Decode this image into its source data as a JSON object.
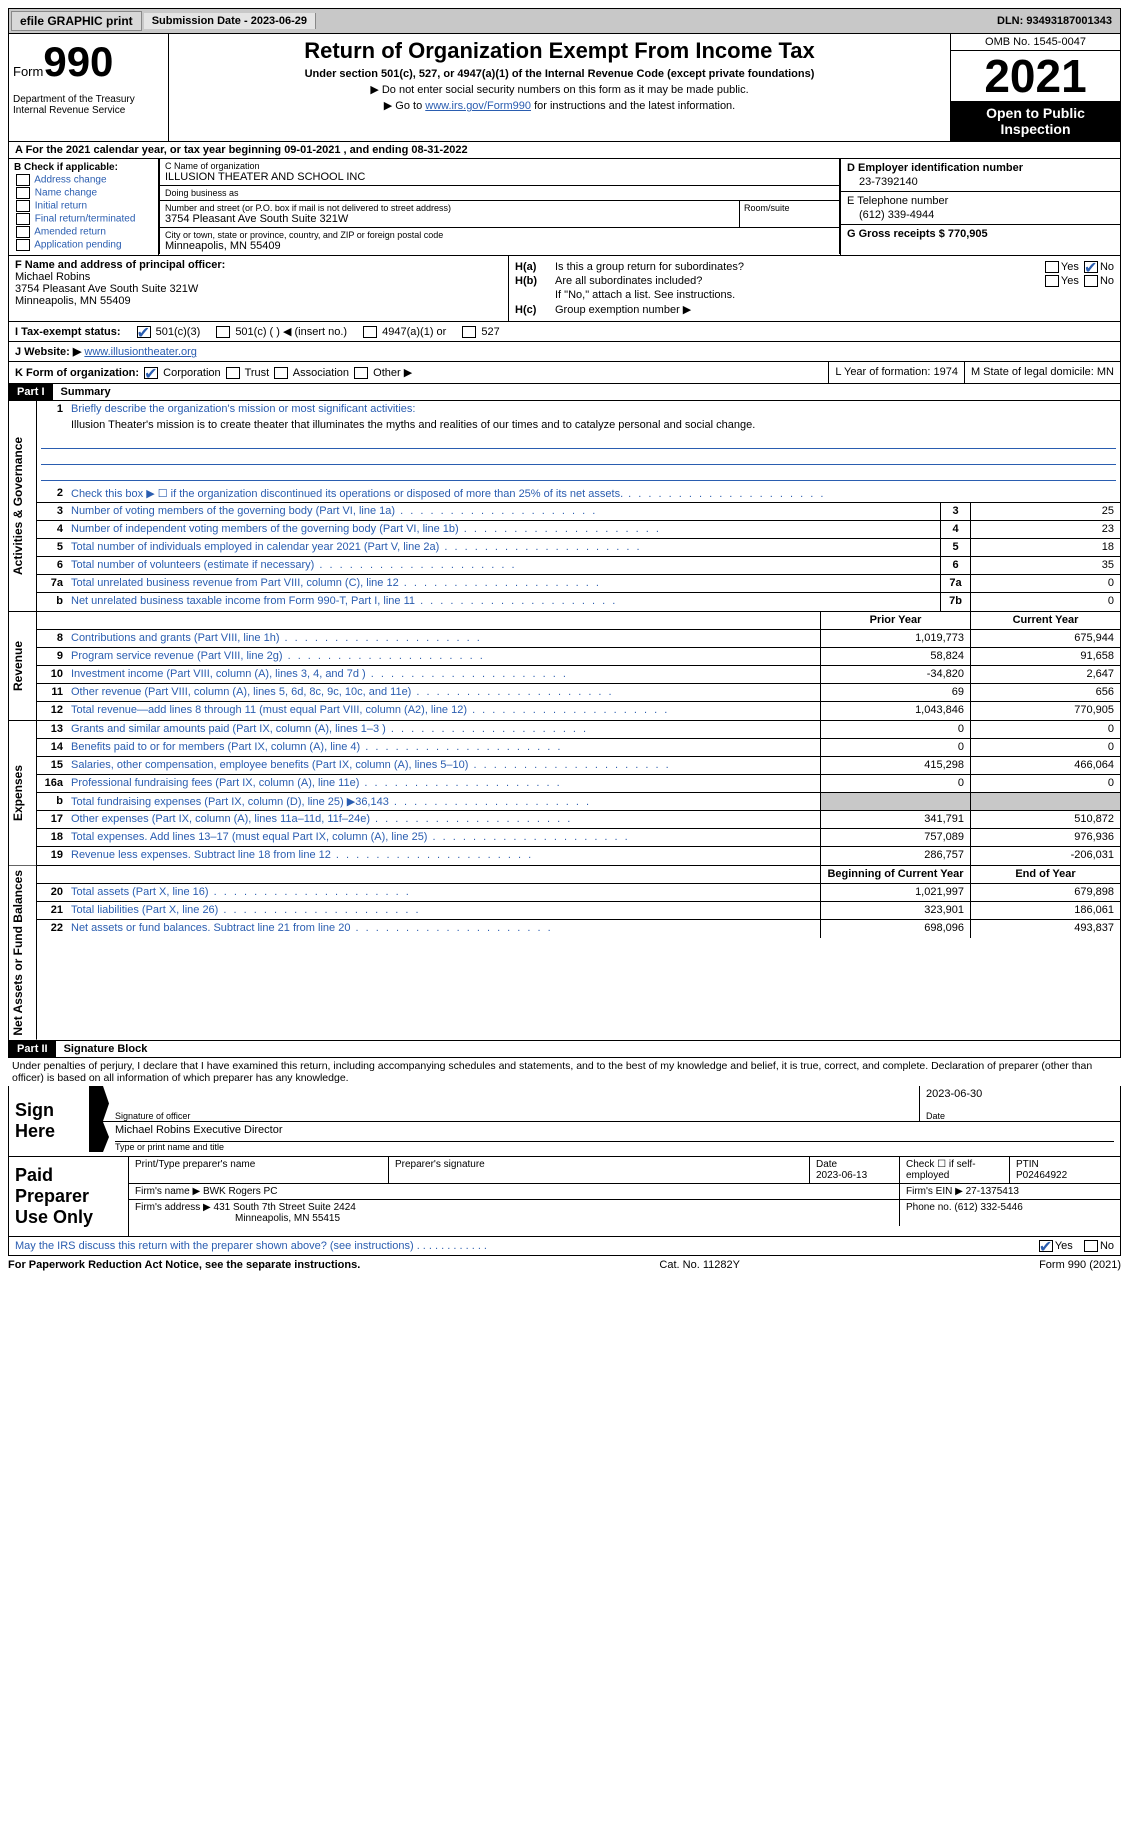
{
  "topbar": {
    "efile": "efile GRAPHIC print",
    "submission": "Submission Date - 2023-06-29",
    "dln": "DLN: 93493187001343"
  },
  "header": {
    "form_prefix": "Form",
    "form_number": "990",
    "dept": "Department of the Treasury\nInternal Revenue Service",
    "title": "Return of Organization Exempt From Income Tax",
    "subtitle": "Under section 501(c), 527, or 4947(a)(1) of the Internal Revenue Code (except private foundations)",
    "instr1": "▶ Do not enter social security numbers on this form as it may be made public.",
    "instr2_pre": "▶ Go to ",
    "instr2_link": "www.irs.gov/Form990",
    "instr2_post": " for instructions and the latest information.",
    "omb": "OMB No. 1545-0047",
    "year": "2021",
    "inspect": "Open to Public Inspection"
  },
  "row_a": "A For the 2021 calendar year, or tax year beginning 09-01-2021   , and ending 08-31-2022",
  "section_b": {
    "label": "B Check if applicable:",
    "opts": [
      "Address change",
      "Name change",
      "Initial return",
      "Final return/terminated",
      "Amended return",
      "Application pending"
    ]
  },
  "section_c": {
    "name_label": "C Name of organization",
    "name": "ILLUSION THEATER AND SCHOOL INC",
    "dba_label": "Doing business as",
    "dba": "",
    "street_label": "Number and street (or P.O. box if mail is not delivered to street address)",
    "room_label": "Room/suite",
    "street": "3754 Pleasant Ave South Suite 321W",
    "city_label": "City or town, state or province, country, and ZIP or foreign postal code",
    "city": "Minneapolis, MN  55409"
  },
  "section_d": {
    "label": "D Employer identification number",
    "value": "23-7392140"
  },
  "section_e": {
    "label": "E Telephone number",
    "value": "(612) 339-4944"
  },
  "section_g": {
    "label": "G Gross receipts $ 770,905"
  },
  "section_f": {
    "label": "F  Name and address of principal officer:",
    "name": "Michael Robins",
    "street": "3754 Pleasant Ave South Suite 321W",
    "city": "Minneapolis, MN  55409"
  },
  "section_h": {
    "a_label": "H(a)",
    "a_text": "Is this a group return for subordinates?",
    "a_yes": "Yes",
    "a_no": "No",
    "b_label": "H(b)",
    "b_text": "Are all subordinates included?",
    "b_yes": "Yes",
    "b_no": "No",
    "b_note": "If \"No,\" attach a list. See instructions.",
    "c_label": "H(c)",
    "c_text": "Group exemption number ▶"
  },
  "section_i": {
    "label": "I   Tax-exempt status:",
    "o1": "501(c)(3)",
    "o2": "501(c) (  ) ◀ (insert no.)",
    "o3": "4947(a)(1) or",
    "o4": "527"
  },
  "section_j": {
    "label": "J   Website: ▶",
    "value": "www.illusiontheater.org"
  },
  "section_k": {
    "label": "K Form of organization:",
    "o1": "Corporation",
    "o2": "Trust",
    "o3": "Association",
    "o4": "Other ▶",
    "l_label": "L Year of formation: 1974",
    "m_label": "M State of legal domicile: MN"
  },
  "part1": {
    "hdr": "Part I",
    "title": "Summary"
  },
  "summary": {
    "sections": [
      {
        "label": "Activities & Governance",
        "rows": [
          {
            "n": "1",
            "t": "Briefly describe the organization's mission or most significant activities:",
            "mission": true
          },
          {
            "mtext": "Illusion Theater's mission is to create theater that illuminates the myths and realities of our times and to catalyze personal and social change."
          },
          {
            "n": "2",
            "t": "Check this box ▶ ☐ if the organization discontinued its operations or disposed of more than 25% of its net assets."
          },
          {
            "n": "3",
            "t": "Number of voting members of the governing body (Part VI, line 1a)",
            "box": "3",
            "v2": "25"
          },
          {
            "n": "4",
            "t": "Number of independent voting members of the governing body (Part VI, line 1b)",
            "box": "4",
            "v2": "23"
          },
          {
            "n": "5",
            "t": "Total number of individuals employed in calendar year 2021 (Part V, line 2a)",
            "box": "5",
            "v2": "18"
          },
          {
            "n": "6",
            "t": "Total number of volunteers (estimate if necessary)",
            "box": "6",
            "v2": "35"
          },
          {
            "n": "7a",
            "t": "Total unrelated business revenue from Part VIII, column (C), line 12",
            "box": "7a",
            "v2": "0"
          },
          {
            "n": "b",
            "t": "Net unrelated business taxable income from Form 990-T, Part I, line 11",
            "box": "7b",
            "v2": "0"
          }
        ]
      },
      {
        "label": "Revenue",
        "hdr1": "Prior Year",
        "hdr2": "Current Year",
        "rows": [
          {
            "n": "8",
            "t": "Contributions and grants (Part VIII, line 1h)",
            "v1": "1,019,773",
            "v2": "675,944"
          },
          {
            "n": "9",
            "t": "Program service revenue (Part VIII, line 2g)",
            "v1": "58,824",
            "v2": "91,658"
          },
          {
            "n": "10",
            "t": "Investment income (Part VIII, column (A), lines 3, 4, and 7d )",
            "v1": "-34,820",
            "v2": "2,647"
          },
          {
            "n": "11",
            "t": "Other revenue (Part VIII, column (A), lines 5, 6d, 8c, 9c, 10c, and 11e)",
            "v1": "69",
            "v2": "656"
          },
          {
            "n": "12",
            "t": "Total revenue—add lines 8 through 11 (must equal Part VIII, column (A2), line 12)",
            "v1": "1,043,846",
            "v2": "770,905"
          }
        ]
      },
      {
        "label": "Expenses",
        "rows": [
          {
            "n": "13",
            "t": "Grants and similar amounts paid (Part IX, column (A), lines 1–3 )",
            "v1": "0",
            "v2": "0"
          },
          {
            "n": "14",
            "t": "Benefits paid to or for members (Part IX, column (A), line 4)",
            "v1": "0",
            "v2": "0"
          },
          {
            "n": "15",
            "t": "Salaries, other compensation, employee benefits (Part IX, column (A), lines 5–10)",
            "v1": "415,298",
            "v2": "466,064"
          },
          {
            "n": "16a",
            "t": "Professional fundraising fees (Part IX, column (A), line 11e)",
            "v1": "0",
            "v2": "0"
          },
          {
            "n": "b",
            "t": "Total fundraising expenses (Part IX, column (D), line 25) ▶36,143",
            "v1grey": true,
            "v2grey": true
          },
          {
            "n": "17",
            "t": "Other expenses (Part IX, column (A), lines 11a–11d, 11f–24e)",
            "v1": "341,791",
            "v2": "510,872"
          },
          {
            "n": "18",
            "t": "Total expenses. Add lines 13–17 (must equal Part IX, column (A), line 25)",
            "v1": "757,089",
            "v2": "976,936"
          },
          {
            "n": "19",
            "t": "Revenue less expenses. Subtract line 18 from line 12",
            "v1": "286,757",
            "v2": "-206,031"
          }
        ]
      },
      {
        "label": "Net Assets or Fund Balances",
        "hdr1": "Beginning of Current Year",
        "hdr2": "End of Year",
        "rows": [
          {
            "n": "20",
            "t": "Total assets (Part X, line 16)",
            "v1": "1,021,997",
            "v2": "679,898"
          },
          {
            "n": "21",
            "t": "Total liabilities (Part X, line 26)",
            "v1": "323,901",
            "v2": "186,061"
          },
          {
            "n": "22",
            "t": "Net assets or fund balances. Subtract line 21 from line 20",
            "v1": "698,096",
            "v2": "493,837"
          }
        ]
      }
    ]
  },
  "part2": {
    "hdr": "Part II",
    "title": "Signature Block"
  },
  "sig": {
    "decl": "Under penalties of perjury, I declare that I have examined this return, including accompanying schedules and statements, and to the best of my knowledge and belief, it is true, correct, and complete. Declaration of preparer (other than officer) is based on all information of which preparer has any knowledge.",
    "here": "Sign Here",
    "off_sig": "Signature of officer",
    "off_date": "2023-06-30",
    "date_lbl": "Date",
    "off_name": "Michael Robins  Executive Director",
    "off_name_lbl": "Type or print name and title"
  },
  "prep": {
    "label": "Paid Preparer Use Only",
    "h1": "Print/Type preparer's name",
    "h2": "Preparer's signature",
    "h3": "Date",
    "h3v": "2023-06-13",
    "h4": "Check ☐ if self-employed",
    "h5": "PTIN",
    "h5v": "P02464922",
    "firm_lbl": "Firm's name    ▶",
    "firm": "BWK Rogers PC",
    "ein_lbl": "Firm's EIN ▶",
    "ein": "27-1375413",
    "addr_lbl": "Firm's address ▶",
    "addr1": "431 South 7th Street Suite 2424",
    "addr2": "Minneapolis, MN  55415",
    "phone_lbl": "Phone no.",
    "phone": "(612) 332-5446"
  },
  "discuss": {
    "text": "May the IRS discuss this return with the preparer shown above? (see instructions)",
    "yes": "Yes",
    "no": "No"
  },
  "footer": {
    "l": "For Paperwork Reduction Act Notice, see the separate instructions.",
    "c": "Cat. No. 11282Y",
    "r": "Form 990 (2021)"
  }
}
